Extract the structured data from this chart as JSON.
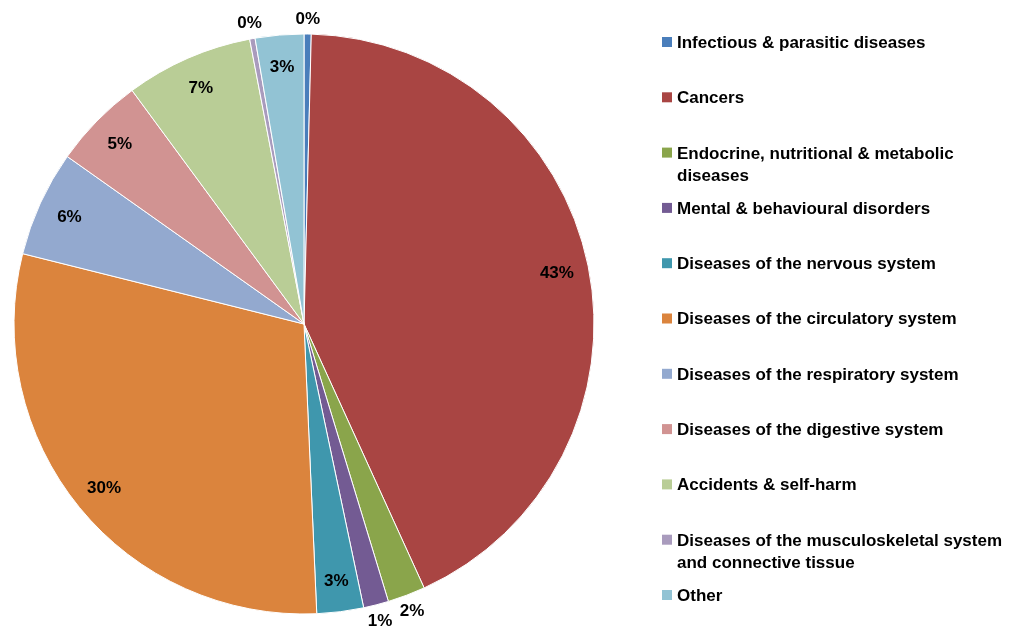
{
  "chart_data": {
    "type": "pie",
    "categories": [
      "Infectious & parasitic diseases",
      "Cancers",
      "Endocrine, nutritional & metabolic diseases",
      "Mental & behavioural disorders",
      "Diseases of the nervous system",
      "Diseases of the circulatory system",
      "Diseases of the respiratory system",
      "Diseases of the digestive system",
      "Accidents & self-harm",
      "Diseases of the musculoskeletal system and connective tissue",
      "Other"
    ],
    "values": [
      0.4,
      42.8,
      2.1,
      1.4,
      2.6,
      29.6,
      5.9,
      5.1,
      7.1,
      0.3,
      2.7
    ],
    "value_labels": [
      "0%",
      "43%",
      "2%",
      "1%",
      "3%",
      "30%",
      "6%",
      "5%",
      "7%",
      "0%",
      "3%"
    ],
    "colors": [
      "#4a7ebb",
      "#a94543",
      "#8aa54b",
      "#735b93",
      "#3f97ad",
      "#db843d",
      "#93a9cf",
      "#d19392",
      "#b9cd96",
      "#a99bbd",
      "#92c3d4"
    ],
    "legend": "right"
  }
}
